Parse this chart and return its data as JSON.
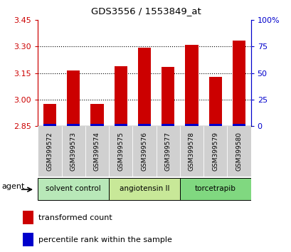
{
  "title": "GDS3556 / 1553849_at",
  "samples": [
    "GSM399572",
    "GSM399573",
    "GSM399574",
    "GSM399575",
    "GSM399576",
    "GSM399577",
    "GSM399578",
    "GSM399579",
    "GSM399580"
  ],
  "red_values": [
    2.975,
    3.165,
    2.975,
    3.19,
    3.295,
    3.185,
    3.31,
    3.13,
    3.335
  ],
  "blue_fractions": [
    0.05,
    0.12,
    0.08,
    0.1,
    0.13,
    0.11,
    0.12,
    0.06,
    0.13
  ],
  "baseline": 2.85,
  "ylim_left": [
    2.85,
    3.45
  ],
  "yticks_left": [
    2.85,
    3.0,
    3.15,
    3.3,
    3.45
  ],
  "ylim_right": [
    0,
    100
  ],
  "yticks_right": [
    0,
    25,
    50,
    75,
    100
  ],
  "ytick_labels_right": [
    "0",
    "25",
    "50",
    "75",
    "100%"
  ],
  "groups": [
    {
      "label": "solvent control",
      "start": 0,
      "end": 3,
      "color": "#b8e8b8"
    },
    {
      "label": "angiotensin II",
      "start": 3,
      "end": 6,
      "color": "#c8e898"
    },
    {
      "label": "torcetrapib",
      "start": 6,
      "end": 9,
      "color": "#80d880"
    }
  ],
  "agent_label": "agent",
  "legend_red": "transformed count",
  "legend_blue": "percentile rank within the sample",
  "bar_width": 0.55,
  "left_axis_color": "#cc0000",
  "right_axis_color": "#0000cc",
  "grid_color": "#000000",
  "bar_red_color": "#cc0000",
  "bar_blue_color": "#0000cc",
  "xticklabel_bg": "#d8d8d8",
  "blue_bar_height": 0.012
}
